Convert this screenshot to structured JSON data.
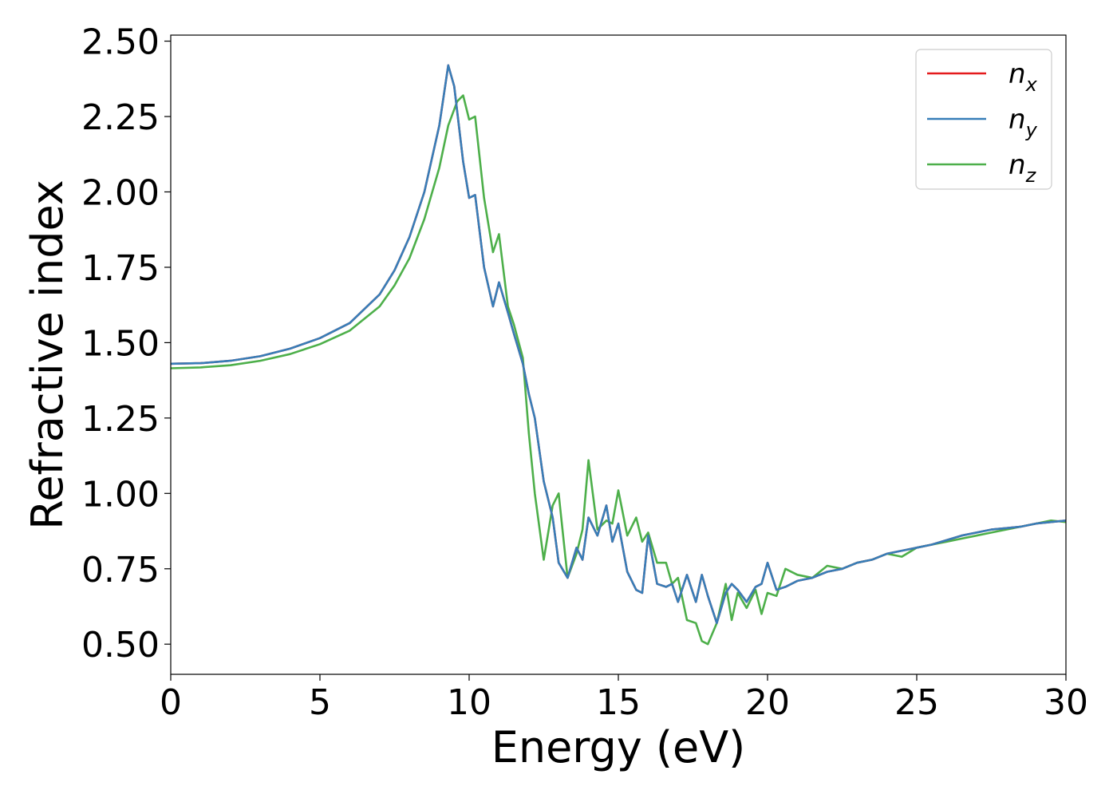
{
  "chart_data": {
    "type": "line",
    "title": "",
    "xlabel": "Energy (eV)",
    "ylabel": "Refractive index",
    "xlim": [
      0,
      30
    ],
    "ylim": [
      0.4,
      2.52
    ],
    "xticks": [
      0,
      5,
      10,
      15,
      20,
      25,
      30
    ],
    "xtick_labels": [
      "0",
      "5",
      "10",
      "15",
      "20",
      "25",
      "30"
    ],
    "yticks": [
      0.5,
      0.75,
      1.0,
      1.25,
      1.5,
      1.75,
      2.0,
      2.25,
      2.5
    ],
    "ytick_labels": [
      "0.50",
      "0.75",
      "1.00",
      "1.25",
      "1.50",
      "1.75",
      "2.00",
      "2.25",
      "2.50"
    ],
    "grid": false,
    "legend_position": "top-right",
    "series": [
      {
        "name": "n_x",
        "symbol": "n",
        "subscript": "x",
        "color": "#e41a1c",
        "x": [
          0,
          1,
          2,
          3,
          4,
          5,
          6,
          7,
          7.5,
          8,
          8.5,
          9,
          9.3,
          9.5,
          9.8,
          10,
          10.2,
          10.5,
          10.8,
          11,
          11.3,
          11.5,
          11.8,
          12,
          12.2,
          12.5,
          12.8,
          13,
          13.3,
          13.6,
          13.8,
          14,
          14.3,
          14.6,
          14.8,
          15,
          15.3,
          15.6,
          15.8,
          16,
          16.3,
          16.6,
          16.8,
          17,
          17.3,
          17.6,
          17.8,
          18,
          18.3,
          18.6,
          18.8,
          19,
          19.3,
          19.6,
          19.8,
          20,
          20.3,
          20.6,
          21,
          21.5,
          22,
          22.5,
          23,
          23.5,
          24,
          24.5,
          25,
          25.5,
          26,
          26.5,
          27,
          27.5,
          28,
          28.5,
          29,
          29.5,
          30
        ],
        "y": [
          1.43,
          1.432,
          1.44,
          1.455,
          1.48,
          1.515,
          1.565,
          1.66,
          1.74,
          1.85,
          2.0,
          2.22,
          2.42,
          2.35,
          2.1,
          1.98,
          1.99,
          1.75,
          1.62,
          1.7,
          1.6,
          1.53,
          1.43,
          1.33,
          1.25,
          1.04,
          0.92,
          0.77,
          0.72,
          0.82,
          0.78,
          0.92,
          0.86,
          0.96,
          0.84,
          0.9,
          0.74,
          0.68,
          0.67,
          0.86,
          0.7,
          0.69,
          0.7,
          0.64,
          0.73,
          0.64,
          0.73,
          0.66,
          0.57,
          0.67,
          0.7,
          0.68,
          0.64,
          0.69,
          0.7,
          0.77,
          0.68,
          0.69,
          0.71,
          0.72,
          0.74,
          0.75,
          0.77,
          0.78,
          0.8,
          0.81,
          0.82,
          0.83,
          0.845,
          0.86,
          0.87,
          0.88,
          0.885,
          0.89,
          0.9,
          0.905,
          0.91
        ]
      },
      {
        "name": "n_y",
        "symbol": "n",
        "subscript": "y",
        "color": "#377eb8",
        "x": [
          0,
          1,
          2,
          3,
          4,
          5,
          6,
          7,
          7.5,
          8,
          8.5,
          9,
          9.3,
          9.5,
          9.8,
          10,
          10.2,
          10.5,
          10.8,
          11,
          11.3,
          11.5,
          11.8,
          12,
          12.2,
          12.5,
          12.8,
          13,
          13.3,
          13.6,
          13.8,
          14,
          14.3,
          14.6,
          14.8,
          15,
          15.3,
          15.6,
          15.8,
          16,
          16.3,
          16.6,
          16.8,
          17,
          17.3,
          17.6,
          17.8,
          18,
          18.3,
          18.6,
          18.8,
          19,
          19.3,
          19.6,
          19.8,
          20,
          20.3,
          20.6,
          21,
          21.5,
          22,
          22.5,
          23,
          23.5,
          24,
          24.5,
          25,
          25.5,
          26,
          26.5,
          27,
          27.5,
          28,
          28.5,
          29,
          29.5,
          30
        ],
        "y": [
          1.43,
          1.432,
          1.44,
          1.455,
          1.48,
          1.515,
          1.565,
          1.66,
          1.74,
          1.85,
          2.0,
          2.22,
          2.42,
          2.35,
          2.1,
          1.98,
          1.99,
          1.75,
          1.62,
          1.7,
          1.6,
          1.53,
          1.43,
          1.33,
          1.25,
          1.04,
          0.92,
          0.77,
          0.72,
          0.82,
          0.78,
          0.92,
          0.86,
          0.96,
          0.84,
          0.9,
          0.74,
          0.68,
          0.67,
          0.86,
          0.7,
          0.69,
          0.7,
          0.64,
          0.73,
          0.64,
          0.73,
          0.66,
          0.57,
          0.67,
          0.7,
          0.68,
          0.64,
          0.69,
          0.7,
          0.77,
          0.68,
          0.69,
          0.71,
          0.72,
          0.74,
          0.75,
          0.77,
          0.78,
          0.8,
          0.81,
          0.82,
          0.83,
          0.845,
          0.86,
          0.87,
          0.88,
          0.885,
          0.89,
          0.9,
          0.905,
          0.91
        ]
      },
      {
        "name": "n_z",
        "symbol": "n",
        "subscript": "z",
        "color": "#4daf4a",
        "x": [
          0,
          1,
          2,
          3,
          4,
          5,
          6,
          7,
          7.5,
          8,
          8.5,
          9,
          9.3,
          9.6,
          9.8,
          10,
          10.2,
          10.5,
          10.8,
          11,
          11.3,
          11.5,
          11.8,
          12,
          12.2,
          12.5,
          12.8,
          13,
          13.3,
          13.6,
          13.8,
          14,
          14.3,
          14.6,
          14.8,
          15,
          15.3,
          15.6,
          15.8,
          16,
          16.3,
          16.6,
          16.8,
          17,
          17.3,
          17.6,
          17.8,
          18,
          18.3,
          18.6,
          18.8,
          19,
          19.3,
          19.6,
          19.8,
          20,
          20.3,
          20.6,
          21,
          21.5,
          22,
          22.5,
          23,
          23.5,
          24,
          24.5,
          25,
          25.5,
          26,
          26.5,
          27,
          27.5,
          28,
          28.5,
          29,
          29.5,
          30
        ],
        "y": [
          1.415,
          1.418,
          1.425,
          1.44,
          1.462,
          1.495,
          1.54,
          1.62,
          1.69,
          1.78,
          1.91,
          2.08,
          2.22,
          2.3,
          2.32,
          2.24,
          2.25,
          1.98,
          1.8,
          1.86,
          1.62,
          1.56,
          1.45,
          1.2,
          1.0,
          0.78,
          0.96,
          1.0,
          0.72,
          0.8,
          0.88,
          1.11,
          0.88,
          0.91,
          0.9,
          1.01,
          0.86,
          0.92,
          0.84,
          0.87,
          0.77,
          0.77,
          0.7,
          0.72,
          0.58,
          0.57,
          0.51,
          0.5,
          0.57,
          0.7,
          0.58,
          0.67,
          0.62,
          0.68,
          0.6,
          0.67,
          0.66,
          0.75,
          0.73,
          0.72,
          0.76,
          0.75,
          0.77,
          0.78,
          0.8,
          0.79,
          0.82,
          0.83,
          0.84,
          0.85,
          0.86,
          0.87,
          0.88,
          0.89,
          0.9,
          0.91,
          0.905
        ]
      }
    ]
  }
}
